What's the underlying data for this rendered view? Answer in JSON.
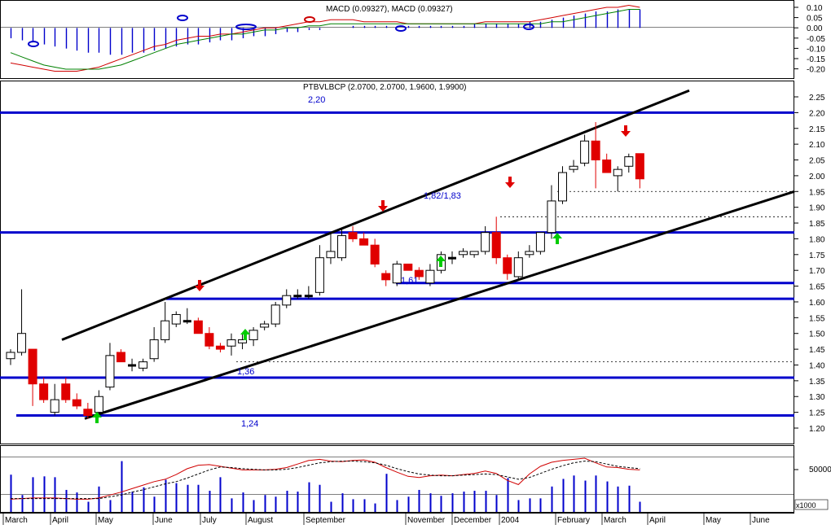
{
  "panels": {
    "macd": {
      "title": "MACD (0.09327), MACD (0.09327)",
      "axis_ticks": [
        "0.10",
        "0.05",
        "0.00",
        "-0.05",
        "-0.10",
        "-0.15",
        "-0.20"
      ]
    },
    "price": {
      "title": "PTBVLBCP (2.0700, 2.0700, 1.9600, 1.9900)",
      "axis_ticks": [
        "2.25",
        "2.20",
        "2.15",
        "2.10",
        "2.05",
        "2.00",
        "1.95",
        "1.90",
        "1.85",
        "1.80",
        "1.75",
        "1.70",
        "1.65",
        "1.60",
        "1.55",
        "1.50",
        "1.45",
        "1.40",
        "1.35",
        "1.30",
        "1.25",
        "1.20"
      ],
      "level_labels": [
        "2,20",
        "1,82/1,83",
        "1,61",
        "1,36",
        "1,24"
      ]
    },
    "volume": {
      "axis_tick": "50000",
      "unit_label": "x1000"
    }
  },
  "x_axis": {
    "labels": [
      "March",
      "April",
      "May",
      "June",
      "July",
      "August",
      "September",
      "November",
      "December",
      "2004",
      "February",
      "March",
      "April",
      "May",
      "June"
    ]
  },
  "colors": {
    "level_line": "#0000cc",
    "channel_line": "#000000",
    "down_candle": "#e00000",
    "up_candle": "#ffffff",
    "volume_bar": "#0000cc",
    "buy_arrow": "#00cc00",
    "sell_arrow": "#e00000",
    "macd_line": "#d00000",
    "signal_line": "#008000"
  },
  "chart_data": [
    {
      "type": "candlestick",
      "title": "PTBVLBCP (2.0700, 2.0700, 1.9600, 1.9900)",
      "last": {
        "open": 2.07,
        "high": 2.07,
        "low": 1.96,
        "close": 1.99
      },
      "ylim": [
        1.17,
        2.28
      ],
      "horizontal_levels": [
        2.2,
        1.82,
        1.66,
        1.61,
        1.36,
        1.24
      ],
      "level_labels": {
        "2,20": 2.2,
        "1,82/1,83": 1.82,
        "1,61": 1.61,
        "1,36": 1.36,
        "1,24": 1.24
      },
      "dotted_levels": [
        1.95,
        1.87,
        1.41
      ],
      "trend_channel": [
        {
          "from": {
            "x": "Mar 2003",
            "y": 1.48
          },
          "to": {
            "x": "Apr 2004",
            "y": 2.27
          }
        },
        {
          "from": {
            "x": "May 2003",
            "y": 1.23
          },
          "to": {
            "x": "Jun 2004",
            "y": 1.95
          }
        }
      ],
      "candles": [
        {
          "o": 1.42,
          "h": 1.45,
          "l": 1.4,
          "c": 1.44
        },
        {
          "o": 1.44,
          "h": 1.64,
          "l": 1.43,
          "c": 1.5
        },
        {
          "o": 1.45,
          "h": 1.45,
          "l": 1.27,
          "c": 1.34
        },
        {
          "o": 1.34,
          "h": 1.36,
          "l": 1.28,
          "c": 1.29
        },
        {
          "o": 1.25,
          "h": 1.34,
          "l": 1.24,
          "c": 1.29
        },
        {
          "o": 1.34,
          "h": 1.36,
          "l": 1.28,
          "c": 1.29
        },
        {
          "o": 1.29,
          "h": 1.31,
          "l": 1.26,
          "c": 1.27
        },
        {
          "o": 1.26,
          "h": 1.28,
          "l": 1.23,
          "c": 1.24
        },
        {
          "o": 1.25,
          "h": 1.32,
          "l": 1.24,
          "c": 1.3
        },
        {
          "o": 1.33,
          "h": 1.47,
          "l": 1.32,
          "c": 1.43
        },
        {
          "o": 1.44,
          "h": 1.45,
          "l": 1.41,
          "c": 1.41
        },
        {
          "o": 1.4,
          "h": 1.42,
          "l": 1.38,
          "c": 1.4
        },
        {
          "o": 1.39,
          "h": 1.42,
          "l": 1.38,
          "c": 1.41
        },
        {
          "o": 1.42,
          "h": 1.52,
          "l": 1.41,
          "c": 1.48
        },
        {
          "o": 1.48,
          "h": 1.6,
          "l": 1.47,
          "c": 1.54
        },
        {
          "o": 1.53,
          "h": 1.57,
          "l": 1.52,
          "c": 1.56
        },
        {
          "o": 1.54,
          "h": 1.58,
          "l": 1.53,
          "c": 1.54
        },
        {
          "o": 1.54,
          "h": 1.55,
          "l": 1.5,
          "c": 1.5
        },
        {
          "o": 1.5,
          "h": 1.52,
          "l": 1.45,
          "c": 1.46
        },
        {
          "o": 1.46,
          "h": 1.47,
          "l": 1.44,
          "c": 1.45
        },
        {
          "o": 1.46,
          "h": 1.5,
          "l": 1.43,
          "c": 1.48
        },
        {
          "o": 1.47,
          "h": 1.5,
          "l": 1.45,
          "c": 1.48
        },
        {
          "o": 1.48,
          "h": 1.52,
          "l": 1.46,
          "c": 1.51
        },
        {
          "o": 1.52,
          "h": 1.54,
          "l": 1.51,
          "c": 1.53
        },
        {
          "o": 1.53,
          "h": 1.6,
          "l": 1.52,
          "c": 1.59
        },
        {
          "o": 1.59,
          "h": 1.64,
          "l": 1.58,
          "c": 1.62
        },
        {
          "o": 1.62,
          "h": 1.64,
          "l": 1.61,
          "c": 1.62
        },
        {
          "o": 1.62,
          "h": 1.65,
          "l": 1.61,
          "c": 1.62
        },
        {
          "o": 1.63,
          "h": 1.78,
          "l": 1.62,
          "c": 1.74
        },
        {
          "o": 1.74,
          "h": 1.82,
          "l": 1.72,
          "c": 1.76
        },
        {
          "o": 1.74,
          "h": 1.83,
          "l": 1.73,
          "c": 1.81
        },
        {
          "o": 1.82,
          "h": 1.84,
          "l": 1.79,
          "c": 1.8
        },
        {
          "o": 1.8,
          "h": 1.82,
          "l": 1.78,
          "c": 1.78
        },
        {
          "o": 1.78,
          "h": 1.8,
          "l": 1.71,
          "c": 1.72
        },
        {
          "o": 1.69,
          "h": 1.7,
          "l": 1.65,
          "c": 1.67
        },
        {
          "o": 1.66,
          "h": 1.73,
          "l": 1.65,
          "c": 1.72
        },
        {
          "o": 1.72,
          "h": 1.72,
          "l": 1.7,
          "c": 1.7
        },
        {
          "o": 1.7,
          "h": 1.71,
          "l": 1.67,
          "c": 1.68
        },
        {
          "o": 1.66,
          "h": 1.72,
          "l": 1.65,
          "c": 1.7
        },
        {
          "o": 1.7,
          "h": 1.76,
          "l": 1.69,
          "c": 1.75
        },
        {
          "o": 1.74,
          "h": 1.76,
          "l": 1.72,
          "c": 1.74
        },
        {
          "o": 1.75,
          "h": 1.77,
          "l": 1.74,
          "c": 1.76
        },
        {
          "o": 1.75,
          "h": 1.76,
          "l": 1.74,
          "c": 1.76
        },
        {
          "o": 1.76,
          "h": 1.84,
          "l": 1.75,
          "c": 1.82
        },
        {
          "o": 1.82,
          "h": 1.87,
          "l": 1.72,
          "c": 1.74
        },
        {
          "o": 1.74,
          "h": 1.75,
          "l": 1.67,
          "c": 1.69
        },
        {
          "o": 1.68,
          "h": 1.76,
          "l": 1.67,
          "c": 1.74
        },
        {
          "o": 1.75,
          "h": 1.78,
          "l": 1.74,
          "c": 1.76
        },
        {
          "o": 1.76,
          "h": 1.82,
          "l": 1.75,
          "c": 1.82
        },
        {
          "o": 1.82,
          "h": 1.97,
          "l": 1.8,
          "c": 1.92
        },
        {
          "o": 1.92,
          "h": 2.03,
          "l": 1.91,
          "c": 2.01
        },
        {
          "o": 2.02,
          "h": 2.05,
          "l": 2.01,
          "c": 2.03
        },
        {
          "o": 2.04,
          "h": 2.13,
          "l": 2.03,
          "c": 2.11
        },
        {
          "o": 2.11,
          "h": 2.17,
          "l": 1.96,
          "c": 2.05
        },
        {
          "o": 2.05,
          "h": 2.07,
          "l": 2.01,
          "c": 2.01
        },
        {
          "o": 2.0,
          "h": 2.03,
          "l": 1.95,
          "c": 2.02
        },
        {
          "o": 2.03,
          "h": 2.07,
          "l": 2.01,
          "c": 2.06
        },
        {
          "o": 2.07,
          "h": 2.07,
          "l": 1.96,
          "c": 1.99
        }
      ]
    },
    {
      "type": "bar",
      "name": "macd_histogram",
      "ylim": [
        -0.23,
        0.13
      ],
      "values": [
        -0.05,
        -0.06,
        -0.07,
        -0.08,
        -0.09,
        -0.1,
        -0.11,
        -0.12,
        -0.12,
        -0.13,
        -0.13,
        -0.12,
        -0.12,
        -0.11,
        -0.1,
        -0.09,
        -0.08,
        -0.08,
        -0.07,
        -0.06,
        -0.06,
        -0.05,
        -0.04,
        -0.04,
        -0.03,
        -0.02,
        -0.02,
        -0.01,
        -0.01,
        0.0,
        0.0,
        0.01,
        0.01,
        0.01,
        0.01,
        0.01,
        0.01,
        0.01,
        0.01,
        0.01,
        0.01,
        0.01,
        0.02,
        0.02,
        0.02,
        0.02,
        0.02,
        0.03,
        0.03,
        0.04,
        0.05,
        0.06,
        0.07,
        0.08,
        0.08,
        0.09,
        0.09,
        0.09
      ]
    },
    {
      "type": "line",
      "name": "macd_lines",
      "ylim": [
        -0.23,
        0.13
      ],
      "series": [
        {
          "values": [
            -0.17,
            -0.18,
            -0.19,
            -0.2,
            -0.21,
            -0.21,
            -0.21,
            -0.2,
            -0.19,
            -0.17,
            -0.15,
            -0.13,
            -0.11,
            -0.09,
            -0.08,
            -0.06,
            -0.05,
            -0.04,
            -0.04,
            -0.03,
            -0.03,
            -0.02,
            -0.01,
            0.0,
            0.0,
            0.01,
            0.02,
            0.03,
            0.03,
            0.04,
            0.04,
            0.04,
            0.03,
            0.03,
            0.03,
            0.03,
            0.02,
            0.02,
            0.02,
            0.02,
            0.02,
            0.02,
            0.02,
            0.03,
            0.03,
            0.03,
            0.03,
            0.03,
            0.04,
            0.05,
            0.06,
            0.07,
            0.08,
            0.09,
            0.1,
            0.1,
            0.11,
            0.1
          ]
        },
        {
          "values": [
            -0.12,
            -0.14,
            -0.16,
            -0.18,
            -0.19,
            -0.2,
            -0.2,
            -0.2,
            -0.2,
            -0.19,
            -0.18,
            -0.16,
            -0.14,
            -0.12,
            -0.1,
            -0.08,
            -0.07,
            -0.06,
            -0.05,
            -0.04,
            -0.03,
            -0.03,
            -0.02,
            -0.01,
            -0.01,
            0.0,
            0.0,
            0.01,
            0.01,
            0.02,
            0.02,
            0.02,
            0.02,
            0.02,
            0.02,
            0.02,
            0.02,
            0.02,
            0.02,
            0.02,
            0.02,
            0.02,
            0.02,
            0.02,
            0.02,
            0.02,
            0.02,
            0.02,
            0.02,
            0.03,
            0.03,
            0.04,
            0.05,
            0.06,
            0.07,
            0.08,
            0.09,
            0.09
          ]
        }
      ]
    },
    {
      "type": "bar",
      "name": "volume",
      "values_thousands": [
        44,
        20,
        41,
        42,
        41,
        26,
        23,
        12,
        30,
        14,
        60,
        24,
        29,
        18,
        38,
        34,
        32,
        32,
        25,
        41,
        16,
        23,
        14,
        20,
        18,
        25,
        24,
        35,
        32,
        12,
        22,
        15,
        15,
        10,
        45,
        14,
        18,
        26,
        22,
        19,
        22,
        24,
        25,
        25,
        20,
        40,
        14,
        16,
        16,
        30,
        39,
        43,
        37,
        43,
        36,
        30,
        31,
        12
      ],
      "stochastic": [
        {
          "values": [
            12,
            13,
            14,
            14,
            14,
            13,
            12,
            12,
            14,
            19,
            24,
            30,
            36,
            42,
            46,
            54,
            64,
            70,
            71,
            68,
            65,
            62,
            62,
            62,
            63,
            66,
            72,
            78,
            80,
            77,
            76,
            78,
            79,
            75,
            66,
            58,
            51,
            49,
            52,
            53,
            52,
            54,
            56,
            60,
            56,
            44,
            37,
            55,
            68,
            75,
            78,
            80,
            82,
            74,
            67,
            66,
            63,
            62
          ]
        },
        {
          "values": [
            13,
            13,
            13,
            13,
            13,
            13,
            13,
            13,
            13,
            16,
            19,
            24,
            28,
            33,
            38,
            42,
            48,
            55,
            62,
            67,
            66,
            64,
            63,
            62,
            62,
            63,
            66,
            70,
            74,
            76,
            77,
            77,
            76,
            74,
            70,
            64,
            59,
            55,
            53,
            52,
            52,
            53,
            54,
            55,
            54,
            50,
            46,
            49,
            56,
            63,
            69,
            74,
            77,
            76,
            72,
            68,
            66,
            64
          ]
        }
      ]
    }
  ]
}
